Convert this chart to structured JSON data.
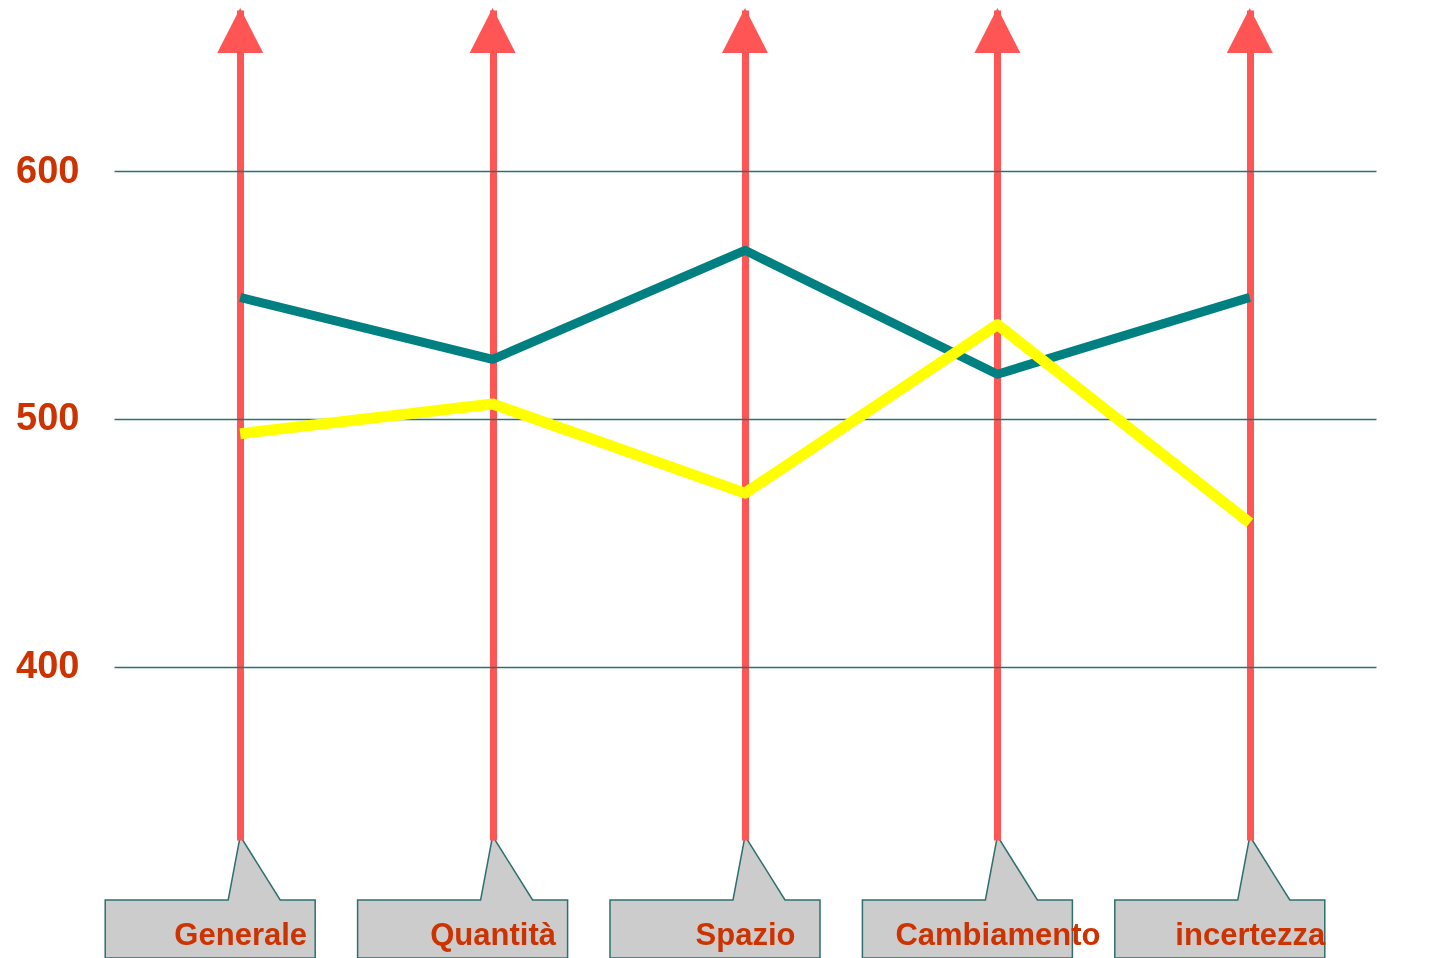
{
  "chart_data": {
    "type": "line",
    "categories": [
      "Generale",
      "Quantità",
      "Spazio",
      "Cambiamento",
      "incertezza"
    ],
    "series": [
      {
        "color": "#008080",
        "values": [
          549,
          524,
          568,
          518,
          549
        ]
      },
      {
        "color": "#ffff00",
        "values": [
          494,
          506,
          470,
          538,
          458
        ]
      }
    ],
    "ylim": [
      330,
      665
    ],
    "yticks": [
      400,
      500,
      600
    ],
    "grid": true,
    "marker": "none",
    "line_style": "solid"
  }
}
